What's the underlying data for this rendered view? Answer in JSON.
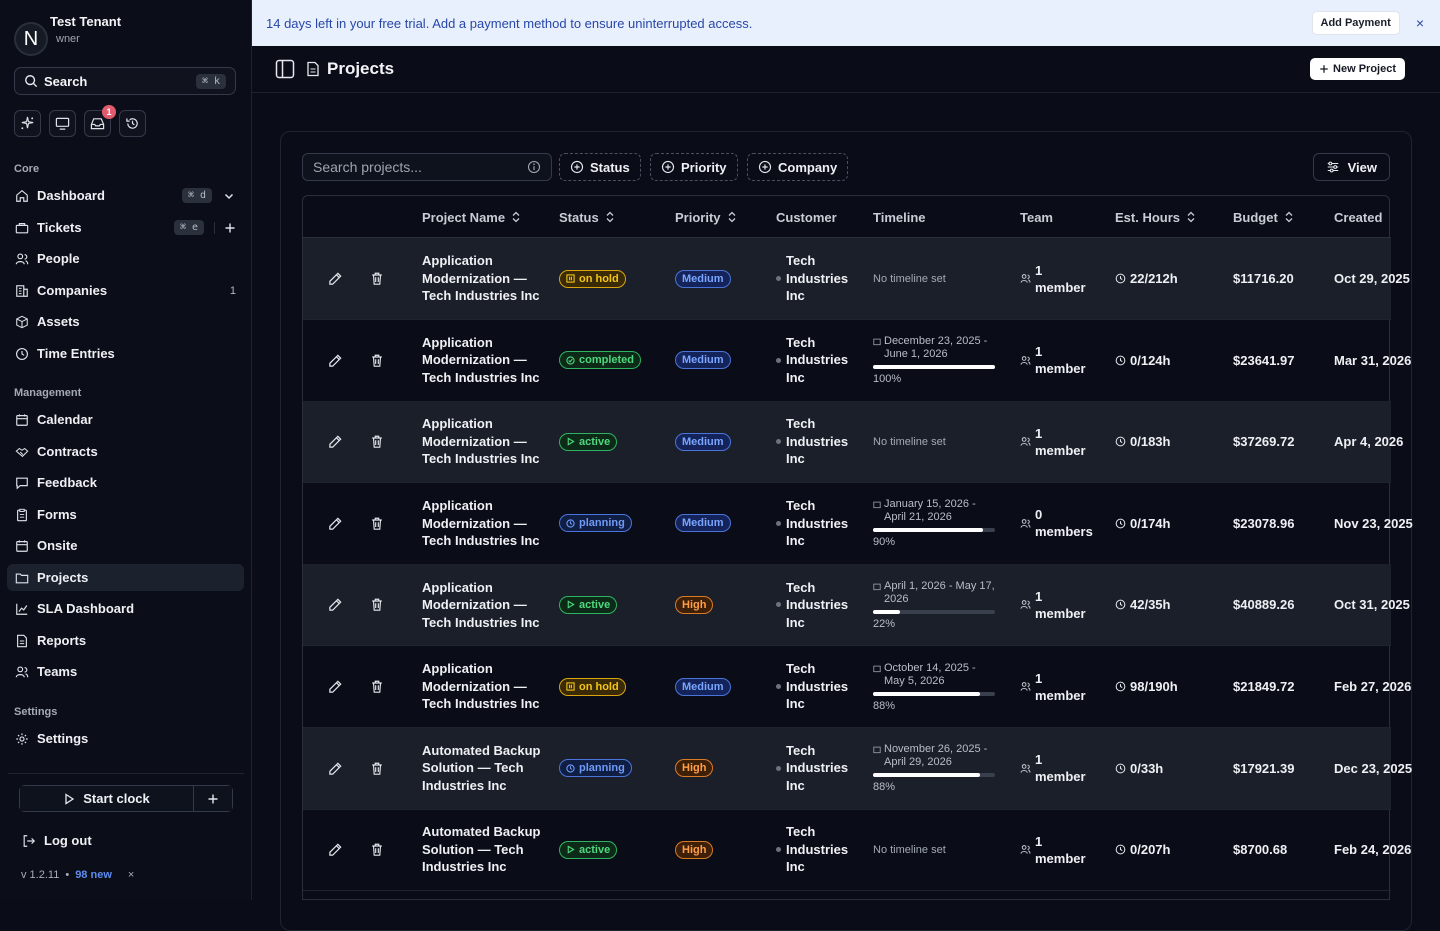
{
  "tenant": {
    "avatar_letter": "N",
    "name": "Test Tenant",
    "role": "wner"
  },
  "search": {
    "label": "Search",
    "shortcut": "⌘ k"
  },
  "quick_actions": {
    "notification_count": "1"
  },
  "nav": {
    "core_label": "Core",
    "management_label": "Management",
    "settings_label": "Settings",
    "items": [
      {
        "label": "Dashboard",
        "shortcut": "⌘ d",
        "icon": "home-icon"
      },
      {
        "label": "Tickets",
        "shortcut": "⌘ e",
        "icon": "ticket-icon"
      },
      {
        "label": "People",
        "icon": "people-icon"
      },
      {
        "label": "Companies",
        "count": "1",
        "icon": "building-icon"
      },
      {
        "label": "Assets",
        "icon": "box-icon"
      },
      {
        "label": "Time Entries",
        "icon": "clock-icon"
      },
      {
        "label": "Calendar",
        "icon": "calendar-icon"
      },
      {
        "label": "Contracts",
        "icon": "handshake-icon"
      },
      {
        "label": "Feedback",
        "icon": "message-icon"
      },
      {
        "label": "Forms",
        "icon": "clipboard-icon"
      },
      {
        "label": "Onsite",
        "icon": "calendar-icon"
      },
      {
        "label": "Projects",
        "icon": "folder-icon"
      },
      {
        "label": "SLA Dashboard",
        "icon": "chart-icon"
      },
      {
        "label": "Reports",
        "icon": "document-icon"
      },
      {
        "label": "Teams",
        "icon": "people-icon"
      },
      {
        "label": "Settings",
        "icon": "gear-icon"
      }
    ]
  },
  "clock": {
    "label": "Start clock"
  },
  "logout": {
    "label": "Log out"
  },
  "version": {
    "number": "v 1.2.11",
    "separator": "•",
    "new": "98 new",
    "close": "×"
  },
  "banner": {
    "text": "14 days left in your free trial. Add a payment method to ensure uninterrupted access.",
    "button": "Add Payment",
    "close": "×"
  },
  "header": {
    "title": "Projects",
    "new_button": "New Project"
  },
  "toolbar": {
    "search_placeholder": "Search projects...",
    "filters": [
      "Status",
      "Priority",
      "Company"
    ],
    "view_label": "View"
  },
  "table": {
    "columns": [
      "Project Name",
      "Status",
      "Priority",
      "Customer",
      "Timeline",
      "Team",
      "Est. Hours",
      "Budget",
      "Created"
    ],
    "rows": [
      {
        "name": "Application Modernization — Tech Industries Inc",
        "status": "on hold",
        "status_kind": "hold",
        "priority": "Medium",
        "customer": "Tech Industries Inc",
        "timeline": "No timeline set",
        "progress": null,
        "team": "1 member",
        "hours": "22/212h",
        "budget": "$11716.20",
        "created": "Oct 29, 2025"
      },
      {
        "name": "Application Modernization — Tech Industries Inc",
        "status": "completed",
        "status_kind": "completed",
        "priority": "Medium",
        "customer": "Tech Industries Inc",
        "timeline": "December 23, 2025 - June 1, 2026",
        "progress": "100%",
        "team": "1 member",
        "hours": "0/124h",
        "budget": "$23641.97",
        "created": "Mar 31, 2026"
      },
      {
        "name": "Application Modernization — Tech Industries Inc",
        "status": "active",
        "status_kind": "active",
        "priority": "Medium",
        "customer": "Tech Industries Inc",
        "timeline": "No timeline set",
        "progress": null,
        "team": "1 member",
        "hours": "0/183h",
        "budget": "$37269.72",
        "created": "Apr 4, 2026"
      },
      {
        "name": "Application Modernization — Tech Industries Inc",
        "status": "planning",
        "status_kind": "planning",
        "priority": "Medium",
        "customer": "Tech Industries Inc",
        "timeline": "January 15, 2026 - April 21, 2026",
        "progress": "90%",
        "team": "0 members",
        "hours": "0/174h",
        "budget": "$23078.96",
        "created": "Nov 23, 2025"
      },
      {
        "name": "Application Modernization — Tech Industries Inc",
        "status": "active",
        "status_kind": "active",
        "priority": "High",
        "customer": "Tech Industries Inc",
        "timeline": "April 1, 2026 - May 17, 2026",
        "progress": "22%",
        "team": "1 member",
        "hours": "42/35h",
        "budget": "$40889.26",
        "created": "Oct 31, 2025"
      },
      {
        "name": "Application Modernization — Tech Industries Inc",
        "status": "on hold",
        "status_kind": "hold",
        "priority": "Medium",
        "customer": "Tech Industries Inc",
        "timeline": "October 14, 2025 - May 5, 2026",
        "progress": "88%",
        "team": "1 member",
        "hours": "98/190h",
        "budget": "$21849.72",
        "created": "Feb 27, 2026"
      },
      {
        "name": "Automated Backup Solution — Tech Industries Inc",
        "status": "planning",
        "status_kind": "planning",
        "priority": "High",
        "customer": "Tech Industries Inc",
        "timeline": "November 26, 2025 - April 29, 2026",
        "progress": "88%",
        "team": "1 member",
        "hours": "0/33h",
        "budget": "$17921.39",
        "created": "Dec 23, 2025"
      },
      {
        "name": "Automated Backup Solution — Tech Industries Inc",
        "status": "active",
        "status_kind": "active",
        "priority": "High",
        "customer": "Tech Industries Inc",
        "timeline": "No timeline set",
        "progress": null,
        "team": "1 member",
        "hours": "0/207h",
        "budget": "$8700.68",
        "created": "Feb 24, 2026"
      }
    ]
  },
  "colors": {
    "accent": "#5d8cf0",
    "banner_bg": "#e9f0fd",
    "badge_red": "#e15b6f"
  }
}
